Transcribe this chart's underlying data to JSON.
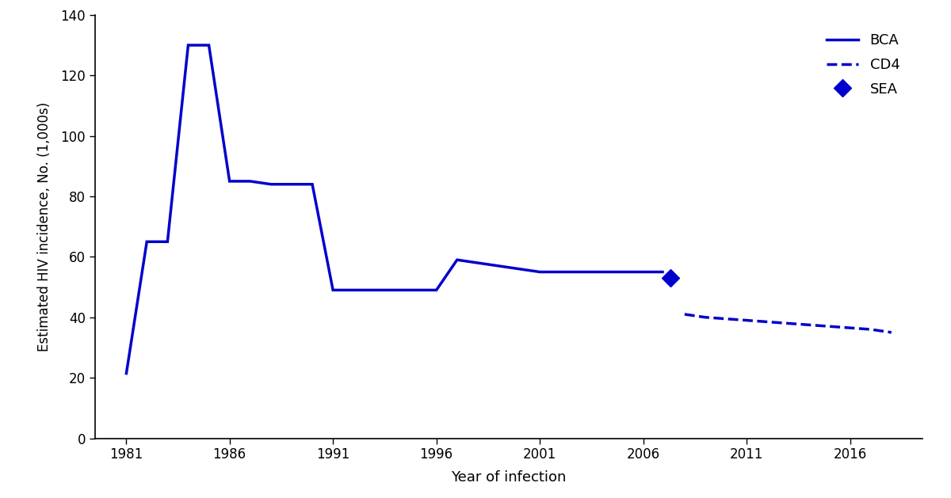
{
  "bca_x": [
    1981,
    1982,
    1983,
    1984,
    1985,
    1986,
    1987,
    1988,
    1989,
    1990,
    1991,
    1992,
    1993,
    1994,
    1995,
    1996,
    1997,
    1998,
    1999,
    2000,
    2001,
    2002,
    2003,
    2004,
    2005,
    2006,
    2007
  ],
  "bca_y": [
    21,
    65,
    65,
    130,
    130,
    85,
    85,
    84,
    84,
    84,
    49,
    49,
    49,
    49,
    49,
    49,
    59,
    58,
    57,
    56,
    55,
    55,
    55,
    55,
    55,
    55,
    55
  ],
  "cd4_x": [
    2008,
    2009,
    2010,
    2011,
    2012,
    2013,
    2014,
    2015,
    2016,
    2017,
    2018
  ],
  "cd4_y": [
    41,
    40,
    39.5,
    39,
    38.5,
    38,
    37.5,
    37,
    36.5,
    36,
    35
  ],
  "sea_x": [
    2007.3
  ],
  "sea_y": [
    53
  ],
  "line_color": "#0000cc",
  "xlabel": "Year of infection",
  "ylabel": "Estimated HIV incidence, No. (1,000s)",
  "xlim": [
    1979.5,
    2019.5
  ],
  "ylim": [
    0,
    140
  ],
  "yticks": [
    0,
    20,
    40,
    60,
    80,
    100,
    120,
    140
  ],
  "xticks": [
    1981,
    1986,
    1991,
    1996,
    2001,
    2006,
    2011,
    2016
  ],
  "legend_labels": [
    "BCA",
    "CD4",
    "SEA"
  ]
}
